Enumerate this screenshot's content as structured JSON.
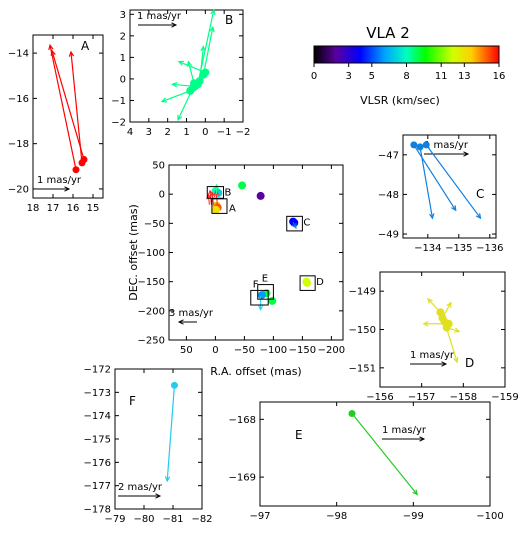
{
  "chart_data": [
    {
      "id": "main",
      "type": "scatter",
      "xlabel": "R.A. offset (mas)",
      "ylabel": "DEC. offset (mas)",
      "xlim": [
        80,
        -220
      ],
      "ylim": [
        -250,
        50
      ],
      "xticks": [
        "50",
        "0",
        "-50",
        "-100",
        "-150",
        "-200"
      ],
      "yticks": [
        "50",
        "0",
        "-50",
        "-100",
        "-150",
        "-200",
        "-250"
      ],
      "scale_label": "3 mas/yr",
      "regions": [
        {
          "label": "A",
          "x": [
            6,
            -20
          ],
          "y": [
            -33,
            -8
          ]
        },
        {
          "label": "B",
          "x": [
            14,
            -14
          ],
          "y": [
            -7,
            13
          ]
        },
        {
          "label": "C",
          "x": [
            -123,
            -150
          ],
          "y": [
            -63,
            -38
          ]
        },
        {
          "label": "D",
          "x": [
            -146,
            -172
          ],
          "y": [
            -165,
            -140
          ]
        },
        {
          "label": "E",
          "x": [
            -73,
            -100
          ],
          "y": [
            -180,
            -155
          ]
        },
        {
          "label": "F",
          "x": [
            -61,
            -91
          ],
          "y": [
            -190,
            -165
          ]
        }
      ],
      "points": [
        {
          "x": -2,
          "y": -20,
          "v": 14
        },
        {
          "x": -4,
          "y": -23,
          "v": 15
        },
        {
          "x": -1,
          "y": -27,
          "v": 13
        },
        {
          "x": 0,
          "y": 5,
          "v": 8
        },
        {
          "x": -5,
          "y": 2,
          "v": 7
        },
        {
          "x": -46,
          "y": 15,
          "v": 9
        },
        {
          "x": -78,
          "y": -3,
          "v": 2
        },
        {
          "x": -134,
          "y": -47,
          "v": 4
        },
        {
          "x": -136,
          "y": -49,
          "v": 4
        },
        {
          "x": -157,
          "y": -150,
          "v": 12
        },
        {
          "x": -158,
          "y": -152,
          "v": 12
        },
        {
          "x": -88,
          "y": -170,
          "v": 9
        },
        {
          "x": -98,
          "y": -183,
          "v": 9
        },
        {
          "x": -80,
          "y": -173,
          "v": 6
        }
      ]
    },
    {
      "id": "A",
      "type": "scatter",
      "label": "A",
      "xlim": [
        18,
        14.5
      ],
      "ylim": [
        -20.4,
        -13.2
      ],
      "xticks": [
        18,
        17,
        16,
        15
      ],
      "yticks": [
        -14,
        -16,
        -18,
        -20
      ],
      "scale_label": "1 mas/yr",
      "color": "#ff0000",
      "points": [
        {
          "x": 15.85,
          "y": -19.15,
          "dx": 1.3,
          "dy": 5.5
        },
        {
          "x": 15.55,
          "y": -18.85,
          "dx": 0.55,
          "dy": 4.9
        },
        {
          "x": 15.45,
          "y": -18.7,
          "dx": 1.6,
          "dy": 4.8
        }
      ]
    },
    {
      "id": "B",
      "type": "scatter",
      "label": "B",
      "xlim": [
        4,
        -2
      ],
      "ylim": [
        -2,
        3.2
      ],
      "xticks": [
        4,
        3,
        2,
        1,
        0,
        -1,
        -2
      ],
      "yticks": [
        3,
        2,
        1,
        0,
        -1,
        -2
      ],
      "scale_label": "1 mas/yr",
      "color": "#00ff88",
      "points": [
        {
          "x": 0.8,
          "y": -0.55,
          "dx": 1.5,
          "dy": -0.5
        },
        {
          "x": 0.65,
          "y": -0.4,
          "dx": 0.8,
          "dy": -1.5
        },
        {
          "x": 0.55,
          "y": -0.35,
          "dx": 1.2,
          "dy": 0.1
        },
        {
          "x": 0.4,
          "y": -0.25,
          "dx": -0.85,
          "dy": 3.45
        },
        {
          "x": 0.3,
          "y": -0.1,
          "dx": -0.2,
          "dy": 1.6
        },
        {
          "x": 0.1,
          "y": 0.2,
          "dx": -0.5,
          "dy": 2.2
        },
        {
          "x": 0.6,
          "y": -0.2,
          "dx": 0.3,
          "dy": 1.0
        },
        {
          "x": 0.0,
          "y": 0.3,
          "dx": 1.4,
          "dy": 0.5
        }
      ]
    },
    {
      "id": "C",
      "type": "scatter",
      "label": "C",
      "xlim": [
        -133.2,
        -136.2
      ],
      "ylim": [
        -49.1,
        -46.5
      ],
      "xticks": [
        -134,
        -135,
        -136
      ],
      "yticks": [
        -47,
        -48,
        -49
      ],
      "scale_label": "1 mas/yr",
      "color": "#1080e0",
      "points": [
        {
          "x": -133.55,
          "y": -46.75,
          "dx": -1.35,
          "dy": -1.65
        },
        {
          "x": -133.75,
          "y": -46.8,
          "dx": -0.4,
          "dy": -1.8
        },
        {
          "x": -133.95,
          "y": -46.75,
          "dx": -1.75,
          "dy": -1.85
        }
      ]
    },
    {
      "id": "D",
      "type": "scatter",
      "label": "D",
      "xlim": [
        -156,
        -159
      ],
      "ylim": [
        -151.5,
        -148.5
      ],
      "xticks": [
        -156,
        -157,
        -158,
        -159
      ],
      "yticks": [
        -149,
        -150,
        -151
      ],
      "scale_label": "1 mas/yr",
      "color": "#e0e020",
      "points": [
        {
          "x": -157.45,
          "y": -149.55,
          "dx": 0.3,
          "dy": 0.35
        },
        {
          "x": -157.5,
          "y": -149.7,
          "dx": -0.2,
          "dy": 0.4
        },
        {
          "x": -157.65,
          "y": -149.85,
          "dx": 0.6,
          "dy": 0.0
        },
        {
          "x": -157.6,
          "y": -149.95,
          "dx": -0.3,
          "dy": -0.1
        },
        {
          "x": -157.55,
          "y": -149.8,
          "dx": -0.3,
          "dy": -1.05
        }
      ]
    },
    {
      "id": "E",
      "type": "scatter",
      "label": "E",
      "xlim": [
        -97,
        -100
      ],
      "ylim": [
        -169.5,
        -167.7
      ],
      "xticks": [
        -97,
        -98,
        -99,
        -100
      ],
      "yticks": [
        -168,
        -169
      ],
      "scale_label": "1 mas/yr",
      "color": "#22cc22",
      "points": [
        {
          "x": -98.2,
          "y": -167.9,
          "dx": -0.85,
          "dy": -1.4
        }
      ]
    },
    {
      "id": "F",
      "type": "scatter",
      "label": "F",
      "xlim": [
        -79,
        -82
      ],
      "ylim": [
        -178,
        -172
      ],
      "xticks": [
        -79,
        -80,
        -81,
        -82
      ],
      "yticks": [
        -172,
        -173,
        -174,
        -175,
        -176,
        -177,
        -178
      ],
      "scale_label": "2 mas/yr",
      "color": "#22ccee",
      "points": [
        {
          "x": -81.05,
          "y": -172.7,
          "dx": 0.25,
          "dy": -4.1
        }
      ]
    }
  ],
  "colorbar": {
    "title": "VLA 2",
    "label": "VLSR (km/sec)",
    "min": 0,
    "max": 16,
    "ticks": [
      "0",
      "3",
      "5",
      "8",
      "11",
      "13",
      "16"
    ]
  }
}
